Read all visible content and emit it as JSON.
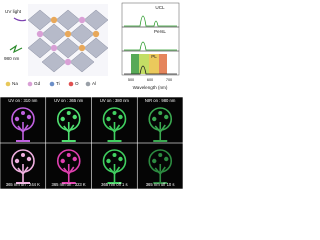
{
  "figure": {
    "excitation": {
      "uv": "UV light",
      "nir": "980 nm"
    },
    "legend": [
      "Na",
      "Gd",
      "Ti",
      "O",
      "Al"
    ],
    "spectra": {
      "panels": [
        "UCL",
        "PersL",
        "PL"
      ],
      "x_ticks": [
        "500",
        "600",
        "700"
      ],
      "x_label": "Wavelength (nm)"
    },
    "photos": [
      "UV on : 310 nm",
      "UV on : 365 nm",
      "UV on : 380 nm",
      "NIR on : 980 nm",
      "365 nm on : 244 K",
      "365 nm on : 323 K",
      "365 nm off 1 s",
      "365 nm off 10 s"
    ]
  }
}
